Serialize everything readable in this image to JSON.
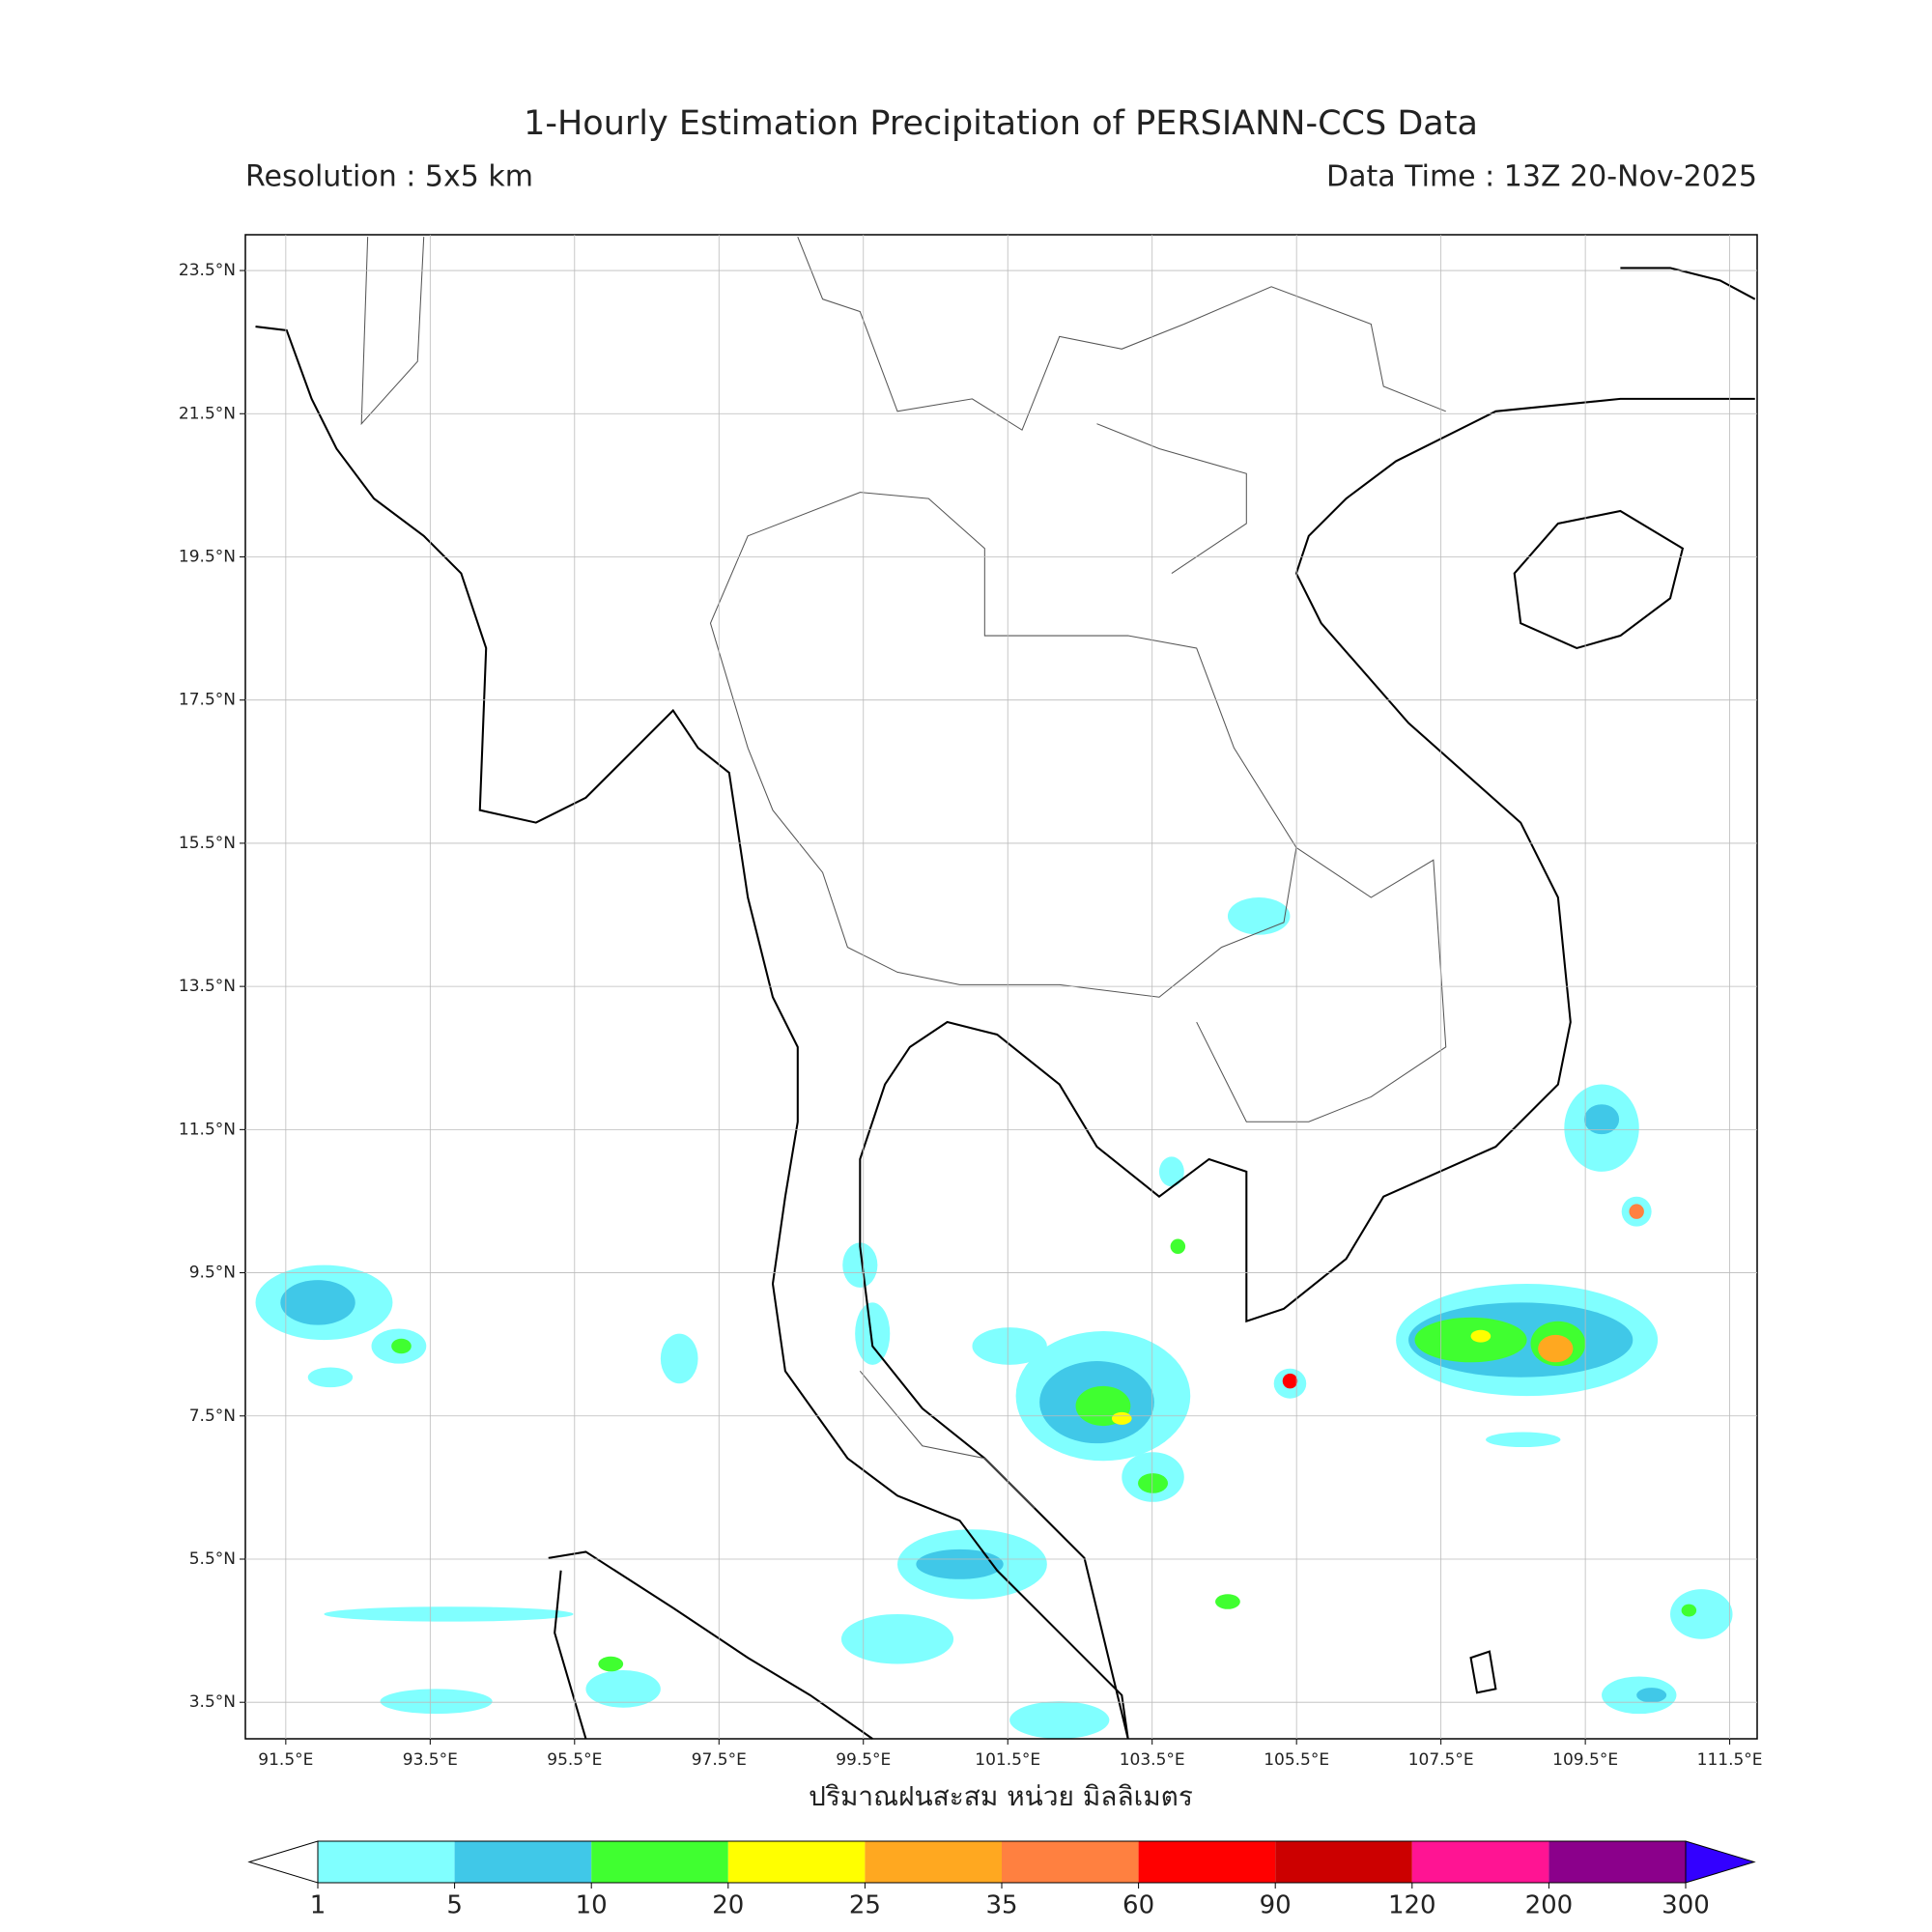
{
  "title": "1-Hourly Estimation Precipitation of PERSIANN-CCS Data",
  "resolution": "Resolution : 5x5 km",
  "data_time": "Data Time : 13Z 20-Nov-2025",
  "map": {
    "lonlim": [
      90.94,
      111.88
    ],
    "latlim": [
      2.99,
      24.0
    ],
    "lonticks": [
      {
        "value": 91.5,
        "label": "91.5°E"
      },
      {
        "value": 93.5,
        "label": "93.5°E"
      },
      {
        "value": 95.5,
        "label": "95.5°E"
      },
      {
        "value": 97.5,
        "label": "97.5°E"
      },
      {
        "value": 99.5,
        "label": "99.5°E"
      },
      {
        "value": 101.5,
        "label": "101.5°E"
      },
      {
        "value": 103.5,
        "label": "103.5°E"
      },
      {
        "value": 105.5,
        "label": "105.5°E"
      },
      {
        "value": 107.5,
        "label": "107.5°E"
      },
      {
        "value": 109.5,
        "label": "109.5°E"
      },
      {
        "value": 111.5,
        "label": "111.5°E"
      }
    ],
    "latticks": [
      {
        "value": 23.5,
        "label": "23.5°N"
      },
      {
        "value": 21.5,
        "label": "21.5°N"
      },
      {
        "value": 19.5,
        "label": "19.5°N"
      },
      {
        "value": 17.5,
        "label": "17.5°N"
      },
      {
        "value": 15.5,
        "label": "15.5°N"
      },
      {
        "value": 13.5,
        "label": "13.5°N"
      },
      {
        "value": 11.5,
        "label": "11.5°N"
      },
      {
        "value": 9.5,
        "label": "9.5°N"
      },
      {
        "value": 7.5,
        "label": "7.5°N"
      },
      {
        "value": 5.5,
        "label": "5.5°N"
      },
      {
        "value": 3.5,
        "label": "3.5°N"
      }
    ],
    "grid": true
  },
  "xlabel": "ปริมาณฝนสะสม หน่วย มิลลิเมตร",
  "colorbar": {
    "ticks": [
      1,
      5,
      10,
      20,
      25,
      35,
      60,
      90,
      120,
      200,
      300
    ],
    "colors": [
      "#80ffff",
      "#40c8e8",
      "#40ff30",
      "#ffff00",
      "#ffa820",
      "#ff8040",
      "#ff0000",
      "#cc0000",
      "#ff1493",
      "#8b008b"
    ],
    "under_color": "#ffffff",
    "over_color": "#3300ff"
  }
}
